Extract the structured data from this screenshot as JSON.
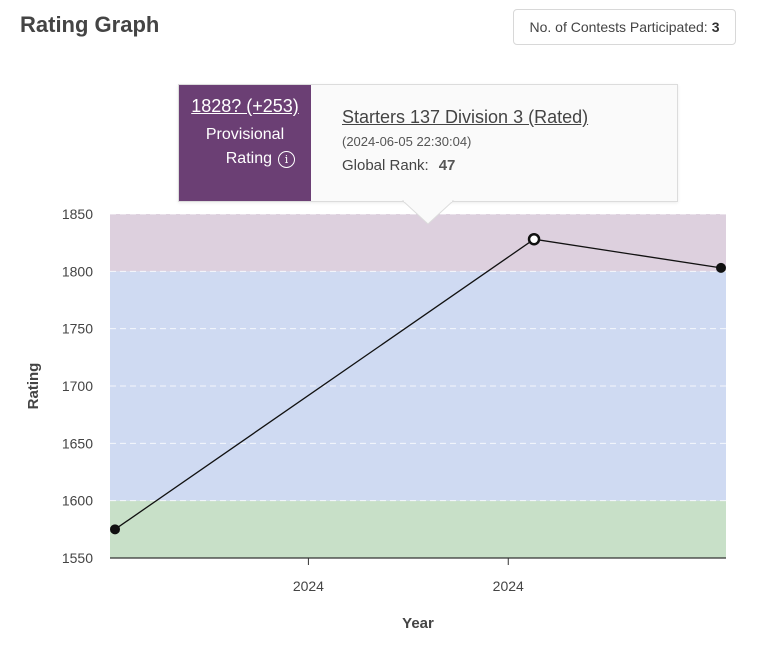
{
  "page": {
    "title": "Rating Graph",
    "contests_label": "No. of Contests Participated:",
    "contests_count": "3"
  },
  "tooltip": {
    "rating": "1828? (+253)",
    "provisional": "Provisional",
    "rating_label": "Rating",
    "info_icon": "info-circle-icon",
    "info_glyph": "i",
    "contest_name": "Starters 137 Division 3 (Rated)",
    "date": "(2024-06-05 22:30:04)",
    "rank_label": "Global Rank:",
    "rank_value": "47",
    "accent_color": "#6b3f74"
  },
  "chart_data": {
    "type": "line",
    "title": "",
    "xlabel": "Year",
    "ylabel": "Rating",
    "ylim": [
      1550,
      1850
    ],
    "yticks": [
      1550,
      1600,
      1650,
      1700,
      1750,
      1800,
      1850
    ],
    "x_range": [
      "2024-04-01",
      "2024-07-04"
    ],
    "xticks": [
      {
        "date": "2024-05-01",
        "label": "2024"
      },
      {
        "date": "2024-06-01",
        "label": "2024"
      }
    ],
    "grid": true,
    "rating_bands": [
      {
        "from": 1550,
        "to": 1600,
        "color": "#c8e0c8"
      },
      {
        "from": 1600,
        "to": 1800,
        "color": "#cfdaf2"
      },
      {
        "from": 1800,
        "to": 1850,
        "color": "#ddd0de"
      }
    ],
    "series": [
      {
        "x": [
          "2024-04-01",
          "2024-06-05",
          "2024-07-04"
        ],
        "values": [
          1575,
          1828,
          1803
        ],
        "highlighted_index": 1
      }
    ]
  }
}
